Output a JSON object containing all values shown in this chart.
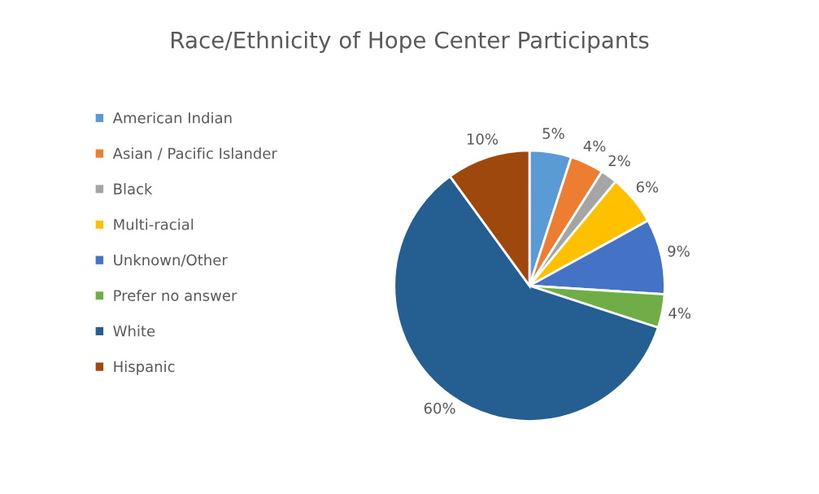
{
  "chart_data": {
    "type": "pie",
    "title": "Race/Ethnicity of Hope Center Participants",
    "categories": [
      "American Indian",
      "Asian / Pacific Islander",
      "Black",
      "Multi-racial",
      "Unknown/Other",
      "Prefer no answer",
      "White",
      "Hispanic"
    ],
    "values": [
      5,
      4,
      2,
      6,
      9,
      4,
      60,
      10
    ],
    "value_labels": [
      "5%",
      "4%",
      "2%",
      "6%",
      "9%",
      "4%",
      "60%",
      "10%"
    ],
    "colors": [
      "#5b9bd5",
      "#ed7d31",
      "#a5a5a5",
      "#ffc000",
      "#4472c4",
      "#70ad47",
      "#255e91",
      "#9e480e"
    ],
    "legend": "left"
  }
}
